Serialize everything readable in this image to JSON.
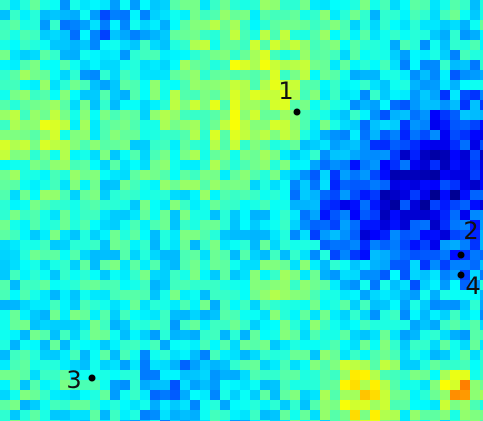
{
  "points": [
    {
      "label": "1"
    },
    {
      "label": "2"
    },
    {
      "label": "3"
    },
    {
      "label": "4"
    }
  ]
}
